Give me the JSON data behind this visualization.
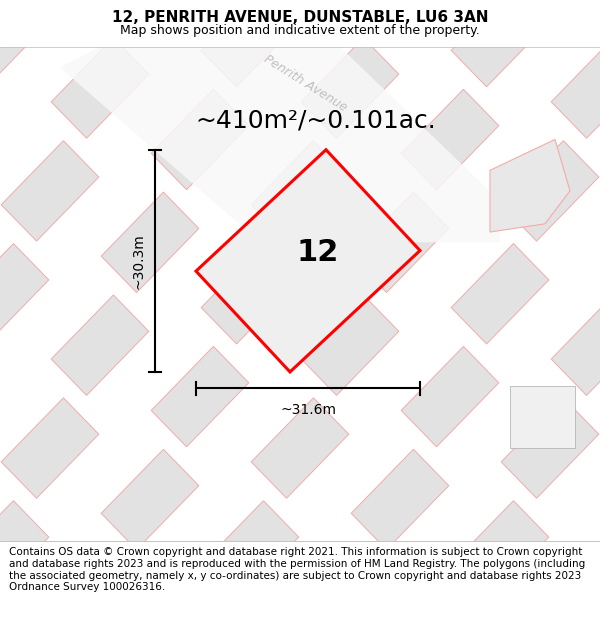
{
  "title": "12, PENRITH AVENUE, DUNSTABLE, LU6 3AN",
  "subtitle": "Map shows position and indicative extent of the property.",
  "area_text": "~410m²/~0.101ac.",
  "property_number": "12",
  "width_label": "~31.6m",
  "height_label": "~30.3m",
  "street_label": "Penrith Avenue",
  "footer_text": "Contains OS data © Crown copyright and database right 2021. This information is subject to Crown copyright and database rights 2023 and is reproduced with the permission of HM Land Registry. The polygons (including the associated geometry, namely x, y co-ordinates) are subject to Crown copyright and database rights 2023 Ordnance Survey 100026316.",
  "title_fontsize": 11,
  "subtitle_fontsize": 9,
  "area_fontsize": 18,
  "number_fontsize": 22,
  "label_fontsize": 10,
  "footer_fontsize": 7.5,
  "plot_color": "#ff0000",
  "building_color": "#e2e2e2",
  "outline_light": "#f5aaaa",
  "map_bg": "#f0f0f0"
}
